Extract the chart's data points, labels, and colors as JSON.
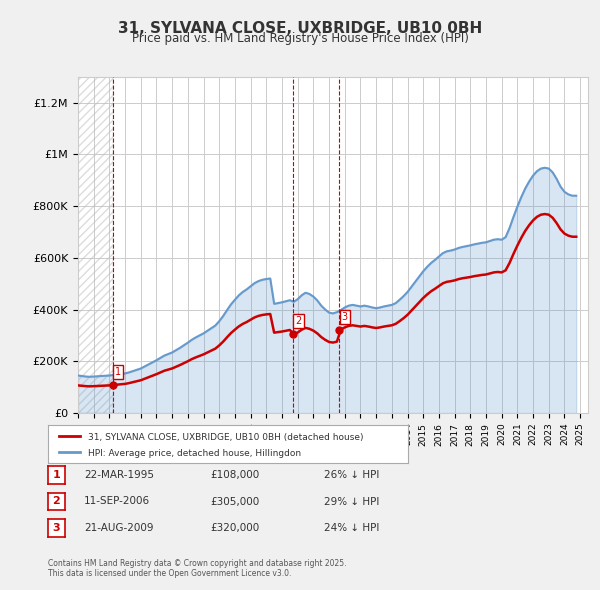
{
  "title": "31, SYLVANA CLOSE, UXBRIDGE, UB10 0BH",
  "subtitle": "Price paid vs. HM Land Registry's House Price Index (HPI)",
  "ylabel_ticks": [
    "£0",
    "£200K",
    "£400K",
    "£600K",
    "£800K",
    "£1M",
    "£1.2M"
  ],
  "ytick_values": [
    0,
    200000,
    400000,
    600000,
    800000,
    1000000,
    1200000
  ],
  "ylim": [
    0,
    1300000
  ],
  "xlim_start": 1993.0,
  "xlim_end": 2025.5,
  "hpi_color": "#6699cc",
  "price_color": "#cc0000",
  "background_color": "#f0f0f0",
  "plot_bg_color": "#ffffff",
  "legend_label_price": "31, SYLVANA CLOSE, UXBRIDGE, UB10 0BH (detached house)",
  "legend_label_hpi": "HPI: Average price, detached house, Hillingdon",
  "sale_dates": [
    1995.22,
    2006.7,
    2009.64
  ],
  "sale_prices": [
    108000,
    305000,
    320000
  ],
  "sale_labels": [
    "1",
    "2",
    "3"
  ],
  "table_rows": [
    [
      "1",
      "22-MAR-1995",
      "£108,000",
      "26% ↓ HPI"
    ],
    [
      "2",
      "11-SEP-2006",
      "£305,000",
      "29% ↓ HPI"
    ],
    [
      "3",
      "21-AUG-2009",
      "£320,000",
      "24% ↓ HPI"
    ]
  ],
  "footnote": "Contains HM Land Registry data © Crown copyright and database right 2025.\nThis data is licensed under the Open Government Licence v3.0.",
  "hpi_data_x": [
    1993.0,
    1993.25,
    1993.5,
    1993.75,
    1994.0,
    1994.25,
    1994.5,
    1994.75,
    1995.0,
    1995.25,
    1995.5,
    1995.75,
    1996.0,
    1996.25,
    1996.5,
    1996.75,
    1997.0,
    1997.25,
    1997.5,
    1997.75,
    1998.0,
    1998.25,
    1998.5,
    1998.75,
    1999.0,
    1999.25,
    1999.5,
    1999.75,
    2000.0,
    2000.25,
    2000.5,
    2000.75,
    2001.0,
    2001.25,
    2001.5,
    2001.75,
    2002.0,
    2002.25,
    2002.5,
    2002.75,
    2003.0,
    2003.25,
    2003.5,
    2003.75,
    2004.0,
    2004.25,
    2004.5,
    2004.75,
    2005.0,
    2005.25,
    2005.5,
    2005.75,
    2006.0,
    2006.25,
    2006.5,
    2006.75,
    2007.0,
    2007.25,
    2007.5,
    2007.75,
    2008.0,
    2008.25,
    2008.5,
    2008.75,
    2009.0,
    2009.25,
    2009.5,
    2009.75,
    2010.0,
    2010.25,
    2010.5,
    2010.75,
    2011.0,
    2011.25,
    2011.5,
    2011.75,
    2012.0,
    2012.25,
    2012.5,
    2012.75,
    2013.0,
    2013.25,
    2013.5,
    2013.75,
    2014.0,
    2014.25,
    2014.5,
    2014.75,
    2015.0,
    2015.25,
    2015.5,
    2015.75,
    2016.0,
    2016.25,
    2016.5,
    2016.75,
    2017.0,
    2017.25,
    2017.5,
    2017.75,
    2018.0,
    2018.25,
    2018.5,
    2018.75,
    2019.0,
    2019.25,
    2019.5,
    2019.75,
    2020.0,
    2020.25,
    2020.5,
    2020.75,
    2021.0,
    2021.25,
    2021.5,
    2021.75,
    2022.0,
    2022.25,
    2022.5,
    2022.75,
    2023.0,
    2023.25,
    2023.5,
    2023.75,
    2024.0,
    2024.25,
    2024.5,
    2024.75
  ],
  "hpi_data_y": [
    145000,
    143000,
    141000,
    140000,
    141000,
    142000,
    143000,
    144000,
    145000,
    147000,
    149000,
    151000,
    153000,
    157000,
    162000,
    167000,
    172000,
    180000,
    188000,
    196000,
    204000,
    213000,
    222000,
    228000,
    234000,
    243000,
    252000,
    262000,
    272000,
    283000,
    292000,
    300000,
    308000,
    318000,
    328000,
    338000,
    355000,
    375000,
    398000,
    420000,
    438000,
    455000,
    468000,
    478000,
    490000,
    502000,
    510000,
    515000,
    518000,
    520000,
    422000,
    425000,
    428000,
    432000,
    436000,
    430000,
    440000,
    455000,
    465000,
    460000,
    450000,
    435000,
    415000,
    400000,
    388000,
    385000,
    390000,
    398000,
    408000,
    415000,
    418000,
    415000,
    412000,
    415000,
    412000,
    408000,
    405000,
    408000,
    412000,
    415000,
    418000,
    425000,
    438000,
    452000,
    468000,
    488000,
    508000,
    528000,
    548000,
    565000,
    580000,
    592000,
    605000,
    618000,
    625000,
    628000,
    632000,
    638000,
    642000,
    645000,
    648000,
    652000,
    655000,
    658000,
    660000,
    665000,
    670000,
    672000,
    670000,
    680000,
    715000,
    758000,
    798000,
    835000,
    868000,
    895000,
    918000,
    935000,
    945000,
    948000,
    945000,
    930000,
    905000,
    875000,
    855000,
    845000,
    840000,
    840000
  ]
}
